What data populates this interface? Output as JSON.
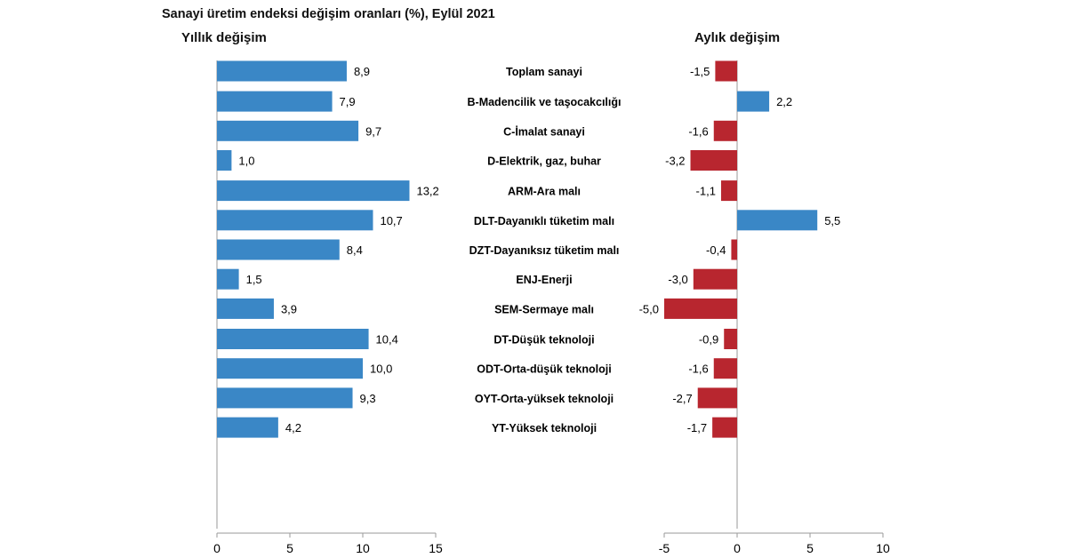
{
  "chart_data": {
    "type": "bar",
    "title": "Sanayi üretim endeksi değişim oranları (%), Eylül 2021",
    "categories": [
      "Toplam sanayi",
      "B-Madencilik ve taşocakcılığı",
      "C-İmalat sanayi",
      "D-Elektrik, gaz, buhar",
      "ARM-Ara malı",
      "DLT-Dayanıklı tüketim malı",
      "DZT-Dayanıksız tüketim malı",
      "ENJ-Enerji",
      "SEM-Sermaye malı",
      "DT-Düşük teknoloji",
      "ODT-Orta-düşük teknoloji",
      "OYT-Orta-yüksek teknoloji",
      "YT-Yüksek teknoloji"
    ],
    "groups": [
      [
        0
      ],
      [
        1,
        2,
        3
      ],
      [
        4,
        5,
        6,
        7,
        8
      ],
      [
        9,
        10,
        11,
        12
      ]
    ],
    "panels": [
      {
        "label": "Yıllık değişim",
        "values": [
          "8,9",
          "7,9",
          "9,7",
          "1,0",
          "13,2",
          "10,7",
          "8,4",
          "1,5",
          "3,9",
          "10,4",
          "10,0",
          "9,3",
          "4,2"
        ],
        "xlim": [
          0,
          15
        ],
        "ticks": [
          "0",
          "5",
          "10",
          "15"
        ],
        "color": "#3a87c6"
      },
      {
        "label": "Aylık değişim",
        "values": [
          "-1,5",
          "2,2",
          "-1,6",
          "-3,2",
          "-1,1",
          "5,5",
          "-0,4",
          "-3,0",
          "-5,0",
          "-0,9",
          "-1,6",
          "-2,7",
          "-1,7"
        ],
        "xlim": [
          -5,
          10
        ],
        "ticks": [
          "-5",
          "0",
          "5",
          "10"
        ],
        "positive_color": "#3a87c6",
        "negative_color": "#b8262f"
      }
    ],
    "orientation": "horizontal",
    "grid": false
  }
}
